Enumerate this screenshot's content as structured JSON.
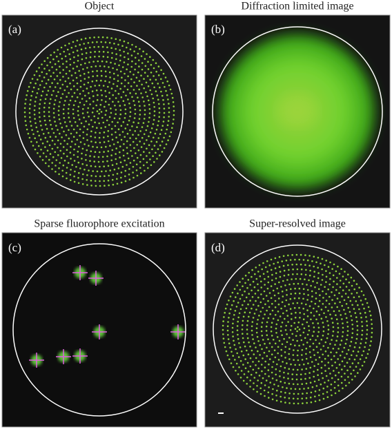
{
  "panels": [
    {
      "title": "Object",
      "label": "(a)"
    },
    {
      "title": "Diffraction limited image",
      "label": "(b)"
    },
    {
      "title": "Sparse fluorophore excitation",
      "label": "(c)"
    },
    {
      "title": "Super-resolved image",
      "label": "(d)"
    }
  ]
}
